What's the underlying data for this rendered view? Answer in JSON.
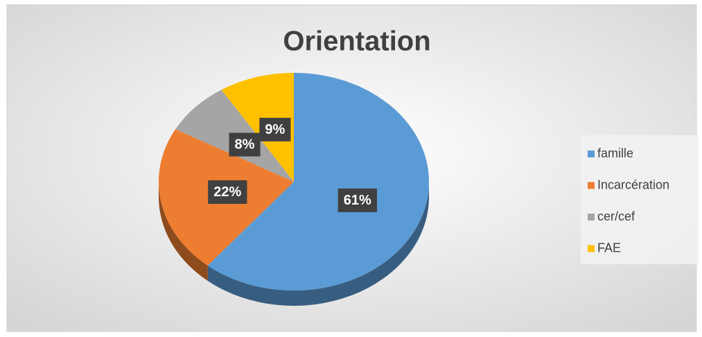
{
  "chart_data": {
    "type": "pie",
    "title": "Orientation",
    "categories": [
      "famille",
      "Incarcération",
      "cer/cef",
      "FAE"
    ],
    "values": [
      61,
      22,
      8,
      9
    ],
    "value_labels": [
      "61%",
      "22%",
      "8%",
      "9%"
    ],
    "colors": [
      "#5b9bd5",
      "#ed7d31",
      "#a5a5a5",
      "#ffc000"
    ],
    "legend": "right"
  }
}
